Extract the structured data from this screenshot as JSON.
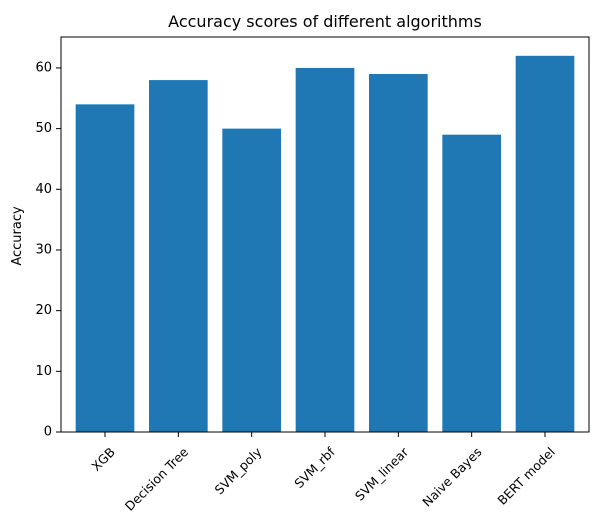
{
  "chart_data": {
    "type": "bar",
    "title": "Accuracy scores of different algorithms",
    "xlabel": "",
    "ylabel": "Accuracy",
    "categories": [
      "XGB",
      "Decision Tree",
      "SVM_poly",
      "SVM_rbf",
      "SVM_linear",
      "Naive Bayes",
      "BERT model"
    ],
    "values": [
      54,
      58,
      50,
      60,
      59,
      49,
      62
    ],
    "ylim": [
      0,
      65.1
    ],
    "yticks": [
      0,
      10,
      20,
      30,
      40,
      50,
      60
    ],
    "grid": false,
    "bar_color": "#1f77b4"
  }
}
